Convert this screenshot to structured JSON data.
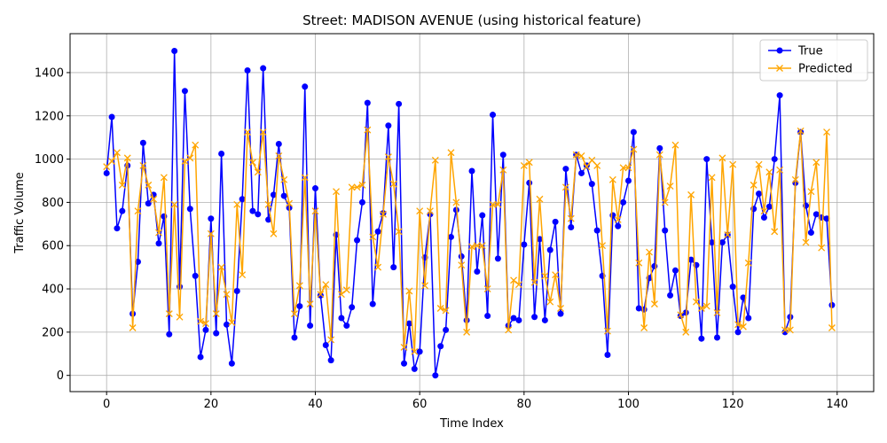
{
  "chart_data": {
    "type": "line",
    "title": "Street: MADISON AVENUE (using historical feature)",
    "xlabel": "Time Index",
    "ylabel": "Traffic Volume",
    "xlim": [
      -7,
      147
    ],
    "ylim": [
      -75,
      1580
    ],
    "xticks": [
      0,
      20,
      40,
      60,
      80,
      100,
      120,
      140
    ],
    "yticks": [
      0,
      200,
      400,
      600,
      800,
      1000,
      1200,
      1400
    ],
    "grid": true,
    "legend_position": "top-right",
    "series": [
      {
        "name": "True",
        "color": "#0000ff",
        "marker": "circle",
        "x": [
          0,
          1,
          2,
          3,
          4,
          5,
          6,
          7,
          8,
          9,
          10,
          11,
          12,
          13,
          14,
          15,
          16,
          17,
          18,
          19,
          20,
          21,
          22,
          23,
          24,
          25,
          26,
          27,
          28,
          29,
          30,
          31,
          32,
          33,
          34,
          35,
          36,
          37,
          38,
          39,
          40,
          41,
          42,
          43,
          44,
          45,
          46,
          47,
          48,
          49,
          50,
          51,
          52,
          53,
          54,
          55,
          56,
          57,
          58,
          59,
          60,
          61,
          62,
          63,
          64,
          65,
          66,
          67,
          68,
          69,
          70,
          71,
          72,
          73,
          74,
          75,
          76,
          77,
          78,
          79,
          80,
          81,
          82,
          83,
          84,
          85,
          86,
          87,
          88,
          89,
          90,
          91,
          92,
          93,
          94,
          95,
          96,
          97,
          98,
          99,
          100,
          101,
          102,
          103,
          104,
          105,
          106,
          107,
          108,
          109,
          110,
          111,
          112,
          113,
          114,
          115,
          116,
          117,
          118,
          119,
          120,
          121,
          122,
          123,
          124,
          125,
          126,
          127,
          128,
          129,
          130,
          131,
          132,
          133,
          134,
          135,
          136,
          137,
          138,
          139
        ],
        "values": [
          935,
          1195,
          680,
          760,
          970,
          285,
          525,
          1075,
          795,
          835,
          610,
          735,
          190,
          1500,
          410,
          1315,
          770,
          460,
          85,
          210,
          725,
          195,
          1025,
          235,
          55,
          390,
          815,
          1410,
          760,
          745,
          1420,
          720,
          835,
          1070,
          830,
          775,
          175,
          320,
          1335,
          230,
          865,
          370,
          140,
          70,
          650,
          265,
          230,
          315,
          625,
          800,
          1260,
          330,
          665,
          750,
          1155,
          500,
          1255,
          55,
          240,
          30,
          110,
          545,
          745,
          0,
          135,
          210,
          640,
          765,
          550,
          255,
          945,
          480,
          740,
          275,
          1205,
          540,
          1020,
          230,
          265,
          255,
          605,
          890,
          270,
          630,
          255,
          580,
          710,
          285,
          955,
          685,
          1020,
          935,
          970,
          885,
          670,
          460,
          95,
          740,
          690,
          800,
          900,
          1125,
          310,
          305,
          450,
          505,
          1050,
          670,
          370,
          485,
          275,
          290,
          535,
          510,
          170,
          1000,
          615,
          175,
          615,
          650,
          410,
          200,
          360,
          265,
          770,
          840,
          730,
          780,
          1000,
          1295,
          200,
          270,
          890,
          1125,
          785,
          660,
          745,
          730,
          725,
          325
        ]
      },
      {
        "name": "Predicted",
        "color": "#ffa500",
        "marker": "x",
        "x": [
          0,
          1,
          2,
          3,
          4,
          5,
          6,
          7,
          8,
          9,
          10,
          11,
          12,
          13,
          14,
          15,
          16,
          17,
          18,
          19,
          20,
          21,
          22,
          23,
          24,
          25,
          26,
          27,
          28,
          29,
          30,
          31,
          32,
          33,
          34,
          35,
          36,
          37,
          38,
          39,
          40,
          41,
          42,
          43,
          44,
          45,
          46,
          47,
          48,
          49,
          50,
          51,
          52,
          53,
          54,
          55,
          56,
          57,
          58,
          59,
          60,
          61,
          62,
          63,
          64,
          65,
          66,
          67,
          68,
          69,
          70,
          71,
          72,
          73,
          74,
          75,
          76,
          77,
          78,
          79,
          80,
          81,
          82,
          83,
          84,
          85,
          86,
          87,
          88,
          89,
          90,
          91,
          92,
          93,
          94,
          95,
          96,
          97,
          98,
          99,
          100,
          101,
          102,
          103,
          104,
          105,
          106,
          107,
          108,
          109,
          110,
          111,
          112,
          113,
          114,
          115,
          116,
          117,
          118,
          119,
          120,
          121,
          122,
          123,
          124,
          125,
          126,
          127,
          128,
          129,
          130,
          131,
          132,
          133,
          134,
          135,
          136,
          137,
          138,
          139
        ],
        "values": [
          965,
          990,
          1030,
          880,
          1005,
          220,
          760,
          970,
          880,
          815,
          660,
          915,
          285,
          790,
          270,
          990,
          1005,
          1065,
          250,
          240,
          655,
          285,
          500,
          375,
          245,
          790,
          465,
          1125,
          985,
          940,
          1125,
          790,
          655,
          1015,
          905,
          795,
          285,
          415,
          915,
          330,
          760,
          375,
          420,
          165,
          850,
          375,
          395,
          870,
          870,
          880,
          1135,
          640,
          500,
          745,
          1010,
          885,
          665,
          130,
          390,
          110,
          760,
          415,
          760,
          995,
          310,
          300,
          1030,
          800,
          510,
          200,
          595,
          600,
          600,
          400,
          790,
          790,
          950,
          210,
          440,
          420,
          970,
          985,
          430,
          815,
          460,
          340,
          465,
          310,
          870,
          725,
          1020,
          1015,
          965,
          995,
          970,
          600,
          205,
          905,
          720,
          960,
          960,
          1045,
          520,
          220,
          570,
          330,
          1020,
          800,
          875,
          1065,
          280,
          200,
          835,
          340,
          310,
          320,
          915,
          290,
          1005,
          650,
          975,
          235,
          225,
          520,
          880,
          975,
          760,
          940,
          665,
          950,
          210,
          210,
          905,
          1130,
          615,
          850,
          985,
          590,
          1125,
          220
        ]
      }
    ]
  }
}
